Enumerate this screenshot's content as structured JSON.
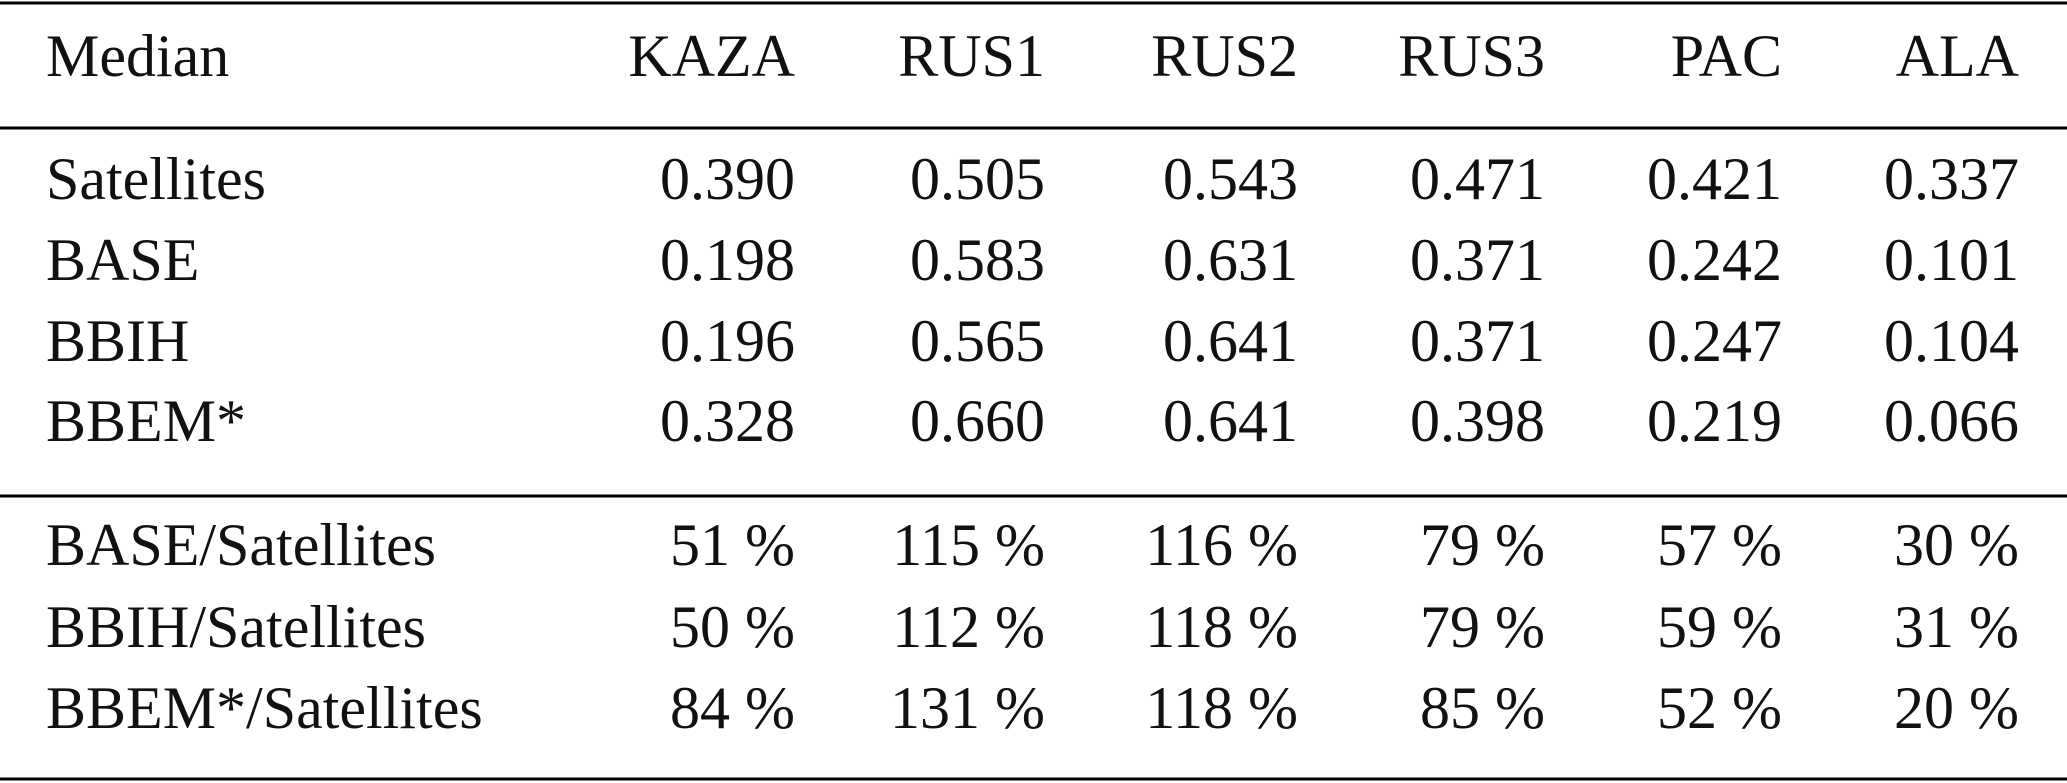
{
  "table": {
    "header": [
      "Median",
      "KAZA",
      "RUS1",
      "RUS2",
      "RUS3",
      "PAC",
      "ALA"
    ],
    "body": [
      [
        "Satellites",
        "0.390",
        "0.505",
        "0.543",
        "0.471",
        "0.421",
        "0.337"
      ],
      [
        "BASE",
        "0.198",
        "0.583",
        "0.631",
        "0.371",
        "0.242",
        "0.101"
      ],
      [
        "BBIH",
        "0.196",
        "0.565",
        "0.641",
        "0.371",
        "0.247",
        "0.104"
      ],
      [
        "BBEM*",
        "0.328",
        "0.660",
        "0.641",
        "0.398",
        "0.219",
        "0.066"
      ]
    ],
    "ratios": [
      [
        "BASE/Satellites",
        "51 %",
        "115 %",
        "116 %",
        "79 %",
        "57 %",
        "30 %"
      ],
      [
        "BBIH/Satellites",
        "50 %",
        "112 %",
        "118 %",
        "79 %",
        "59 %",
        "31 %"
      ],
      [
        "BBEM*/Satellites",
        "84 %",
        "131 %",
        "118 %",
        "85 %",
        "52 %",
        "20 %"
      ]
    ]
  }
}
